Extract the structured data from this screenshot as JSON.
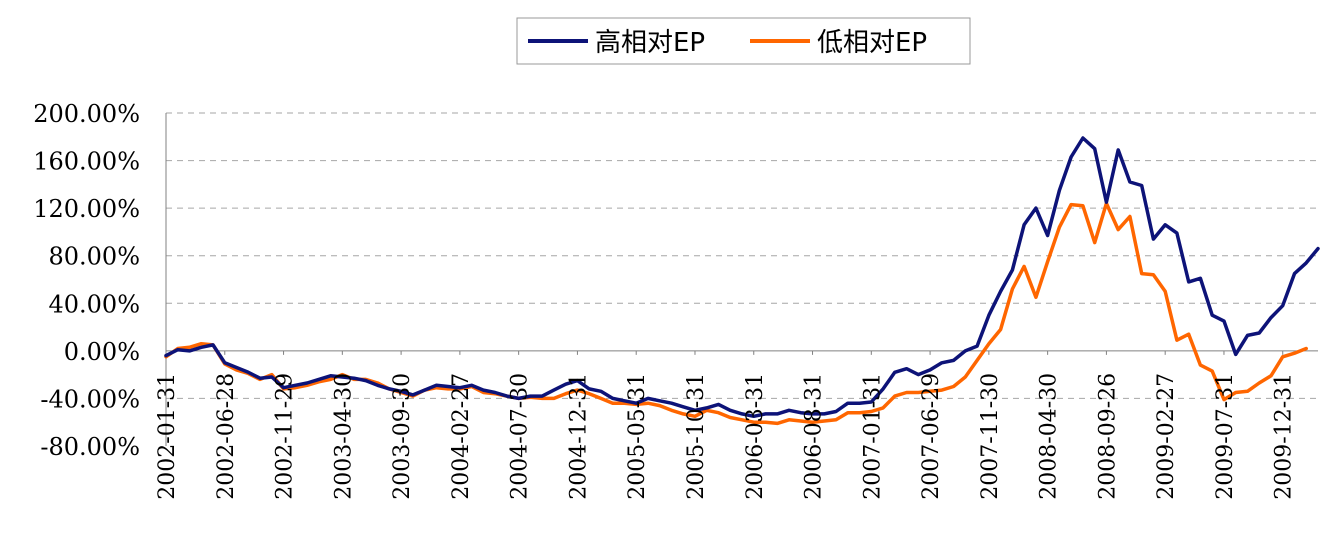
{
  "chart_data": {
    "type": "line",
    "title": "",
    "xlabel": "",
    "ylabel": "",
    "ylim": [
      -80,
      200
    ],
    "y_ticks": [
      "200.00%",
      "160.00%",
      "120.00%",
      "80.00%",
      "40.00%",
      "0.00%",
      "-40.00%",
      "-80.00%"
    ],
    "y_tick_values": [
      200,
      160,
      120,
      80,
      40,
      0,
      -40,
      -80
    ],
    "x_tick_labels": [
      "2002-01-31",
      "2002-06-28",
      "2002-11-29",
      "2003-04-30",
      "2003-09-30",
      "2004-02-27",
      "2004-07-30",
      "2004-12-31",
      "2005-05-31",
      "2005-10-31",
      "2006-03-31",
      "2006-08-31",
      "2007-01-31",
      "2007-06-29",
      "2007-11-30",
      "2008-04-30",
      "2008-09-26",
      "2009-02-27",
      "2009-07-31",
      "2009-12-31"
    ],
    "grid": "horizontal dashed",
    "legend_position": "top-center",
    "series": [
      {
        "name": "高相对EP",
        "color": "#0d1378",
        "values": [
          -4,
          1,
          0,
          3,
          5,
          -10,
          -14,
          -18,
          -23,
          -22,
          -31,
          -29,
          -27,
          -24,
          -21,
          -22,
          -23,
          -25,
          -29,
          -32,
          -34,
          -37,
          -33,
          -29,
          -30,
          -31,
          -29,
          -33,
          -35,
          -38,
          -40,
          -38,
          -38,
          -33,
          -28,
          -25,
          -32,
          -34,
          -40,
          -42,
          -44,
          -40,
          -42,
          -44,
          -47,
          -50,
          -48,
          -45,
          -50,
          -53,
          -55,
          -53,
          -53,
          -50,
          -52,
          -53,
          -53,
          -51,
          -44,
          -44,
          -43,
          -32,
          -18,
          -15,
          -20,
          -16,
          -10,
          -8,
          0,
          4,
          30,
          50,
          68,
          106,
          120,
          97,
          135,
          163,
          179,
          170,
          125,
          169,
          142,
          139,
          94,
          106,
          99,
          58,
          61,
          30,
          25,
          -3,
          13,
          15,
          28,
          38,
          65,
          74,
          86
        ]
      },
      {
        "name": "低相对EP",
        "color": "#ff6600",
        "values": [
          -5,
          2,
          3,
          6,
          5,
          -11,
          -16,
          -19,
          -24,
          -20,
          -32,
          -31,
          -29,
          -26,
          -24,
          -20,
          -24,
          -24,
          -27,
          -32,
          -35,
          -38,
          -33,
          -31,
          -32,
          -32,
          -30,
          -35,
          -36,
          -38,
          -40,
          -39,
          -40,
          -40,
          -36,
          -33,
          -36,
          -40,
          -44,
          -44,
          -45,
          -44,
          -46,
          -50,
          -53,
          -55,
          -50,
          -52,
          -56,
          -58,
          -60,
          -60,
          -61,
          -58,
          -59,
          -60,
          -59,
          -58,
          -52,
          -52,
          -51,
          -48,
          -38,
          -35,
          -35,
          -34,
          -33,
          -30,
          -22,
          -8,
          6,
          18,
          52,
          71,
          45,
          75,
          104,
          123,
          122,
          91,
          124,
          102,
          113,
          65,
          64,
          50,
          9,
          14,
          -12,
          -17,
          -41,
          -35,
          -34,
          -27,
          -21,
          -5,
          -2,
          2
        ]
      }
    ]
  }
}
